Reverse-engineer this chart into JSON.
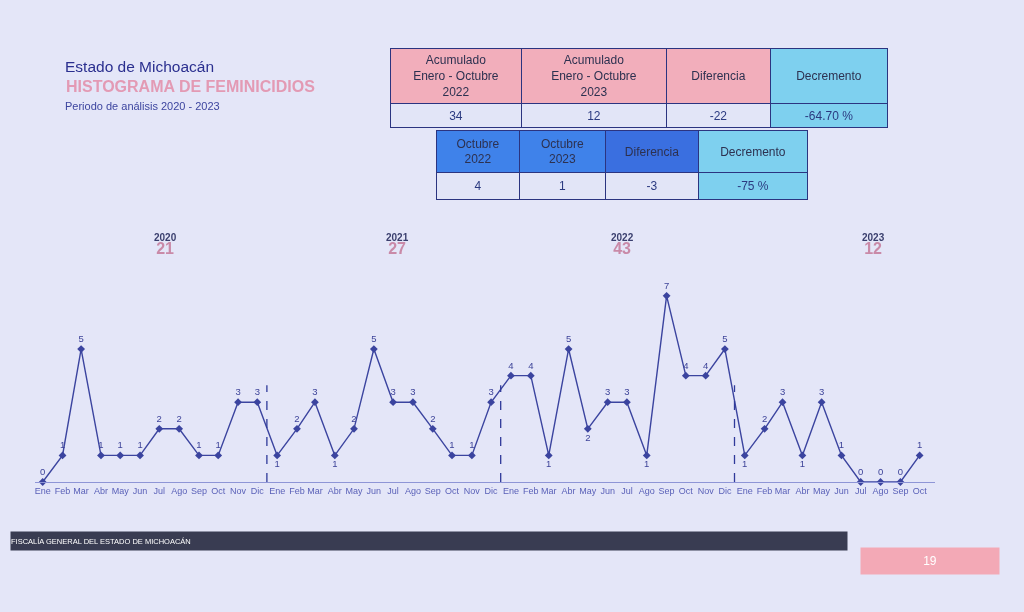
{
  "chart_data": [
    {
      "type": "line",
      "title": "Estado de Michoacán",
      "subtitle": "HISTOGRAMA DE FEMINICIDIOS",
      "x": [
        "2020-01",
        "2020-02",
        "2020-03",
        "2020-04",
        "2020-05",
        "2020-06",
        "2020-07",
        "2020-08",
        "2020-09",
        "2020-10",
        "2020-11",
        "2020-12",
        "2021-01",
        "2021-02",
        "2021-03",
        "2021-04",
        "2021-05",
        "2021-06",
        "2021-07",
        "2021-08",
        "2021-09",
        "2021-10",
        "2021-11",
        "2021-12",
        "2022-01",
        "2022-02",
        "2022-03",
        "2022-04",
        "2022-05",
        "2022-06",
        "2022-07",
        "2022-08",
        "2022-09",
        "2022-10",
        "2022-11",
        "2022-12",
        "2023-01",
        "2023-02",
        "2023-03",
        "2023-04",
        "2023-05",
        "2023-06",
        "2023-07",
        "2023-08",
        "2023-09",
        "2023-10"
      ],
      "values": [
        0,
        1,
        5,
        1,
        1,
        1,
        2,
        2,
        1,
        1,
        3,
        3,
        1,
        2,
        3,
        1,
        2,
        5,
        3,
        3,
        2,
        1,
        1,
        3,
        4,
        4,
        1,
        5,
        2,
        3,
        3,
        1,
        7,
        4,
        4,
        5,
        1,
        2,
        3,
        1,
        3,
        1,
        0,
        0,
        0,
        1
      ],
      "color": "#3b449f",
      "marker": "diamond",
      "line_style": "solid",
      "data_labels": true,
      "tick_labels": "x",
      "xlim": [
        "2019-12-20",
        "2023-10-25"
      ],
      "xticks": [
        {
          "value": "2020-01",
          "label": "Ene"
        },
        {
          "value": "2020-02",
          "label": "Feb"
        },
        {
          "value": "2020-03",
          "label": "Mar"
        },
        {
          "value": "2020-04",
          "label": "Abr"
        },
        {
          "value": "2020-05",
          "label": "May"
        },
        {
          "value": "2020-06",
          "label": "Jun"
        },
        {
          "value": "2020-07",
          "label": "Jul"
        },
        {
          "value": "2020-08",
          "label": "Ago"
        },
        {
          "value": "2020-09",
          "label": "Sep"
        },
        {
          "value": "2020-10",
          "label": "Oct"
        },
        {
          "value": "2020-11",
          "label": "Nov"
        },
        {
          "value": "2020-12",
          "label": "Dic"
        },
        {
          "value": "2021-01",
          "label": "Ene"
        },
        {
          "value": "2021-02",
          "label": "Feb"
        },
        {
          "value": "2021-03",
          "label": "Mar"
        },
        {
          "value": "2021-04",
          "label": "Abr"
        },
        {
          "value": "2021-05",
          "label": "May"
        },
        {
          "value": "2021-06",
          "label": "Jun"
        },
        {
          "value": "2021-07",
          "label": "Jul"
        },
        {
          "value": "2021-08",
          "label": "Ago"
        },
        {
          "value": "2021-09",
          "label": "Sep"
        },
        {
          "value": "2021-10",
          "label": "Oct"
        },
        {
          "value": "2021-11",
          "label": "Nov"
        },
        {
          "value": "2021-12",
          "label": "Dic"
        },
        {
          "value": "2022-01",
          "label": "Ene"
        },
        {
          "value": "2022-02",
          "label": "Feb"
        },
        {
          "value": "2022-03",
          "label": "Mar"
        },
        {
          "value": "2022-04",
          "label": "Abr"
        },
        {
          "value": "2022-05",
          "label": "May"
        },
        {
          "value": "2022-06",
          "label": "Jun"
        },
        {
          "value": "2022-07",
          "label": "Jul"
        },
        {
          "value": "2022-08",
          "label": "Ago"
        },
        {
          "value": "2022-09",
          "label": "Sep"
        },
        {
          "value": "2022-10",
          "label": "Oct"
        },
        {
          "value": "2022-11",
          "label": "Nov"
        },
        {
          "value": "2022-12",
          "label": "Dic"
        },
        {
          "value": "2023-01",
          "label": "Ene"
        },
        {
          "value": "2023-02",
          "label": "Feb"
        },
        {
          "value": "2023-03",
          "label": "Mar"
        },
        {
          "value": "2023-04",
          "label": "Abr"
        },
        {
          "value": "2023-05",
          "label": "May"
        },
        {
          "value": "2023-06",
          "label": "Jun"
        },
        {
          "value": "2023-07",
          "label": "Jul"
        },
        {
          "value": "2023-08",
          "label": "Ago"
        },
        {
          "value": "2023-09",
          "label": "Sep"
        },
        {
          "value": "2023-10",
          "label": "Oct"
        }
      ],
      "ref_lines": [
        {
          "axis": "x",
          "value": "2020-12-16",
          "color": "#2f3a9a",
          "line_style": "dashed"
        },
        {
          "axis": "x",
          "value": "2021-12-16",
          "color": "#2f3a9a",
          "line_style": "dashed"
        },
        {
          "axis": "x",
          "value": "2022-12-16",
          "color": "#2f3a9a",
          "line_style": "dashed"
        }
      ],
      "annotations": [
        "Periodo de análisis 2020 - 2023",
        "2020\n21",
        "2021\n27",
        "2022\n43",
        "2023\n12",
        "FISCALÍA GENERAL DEL ESTADO DE MICHOACÁN",
        "19"
      ]
    },
    {
      "type": "other",
      "categories": [
        "Acumulado\nEnero - Octubre\n2022",
        "Acumulado\nEnero - Octubre\n2023",
        "Diferencia",
        "Decremento"
      ],
      "value_labels": [
        "34",
        "12",
        "-22",
        "-64.70 %"
      ],
      "colors": [
        "#f2aebb",
        "#f2aebb",
        "#f2aebb",
        "#7ed0ef"
      ]
    },
    {
      "type": "other",
      "categories": [
        "Octubre\n2022",
        "Octubre\n2023",
        "Diferencia",
        "Decremento"
      ],
      "value_labels": [
        "4",
        "1",
        "-3",
        "-75 %"
      ],
      "colors": [
        "#3f82ea",
        "#3f82ea",
        "#3a6fe0",
        "#7ed0ef"
      ]
    }
  ]
}
